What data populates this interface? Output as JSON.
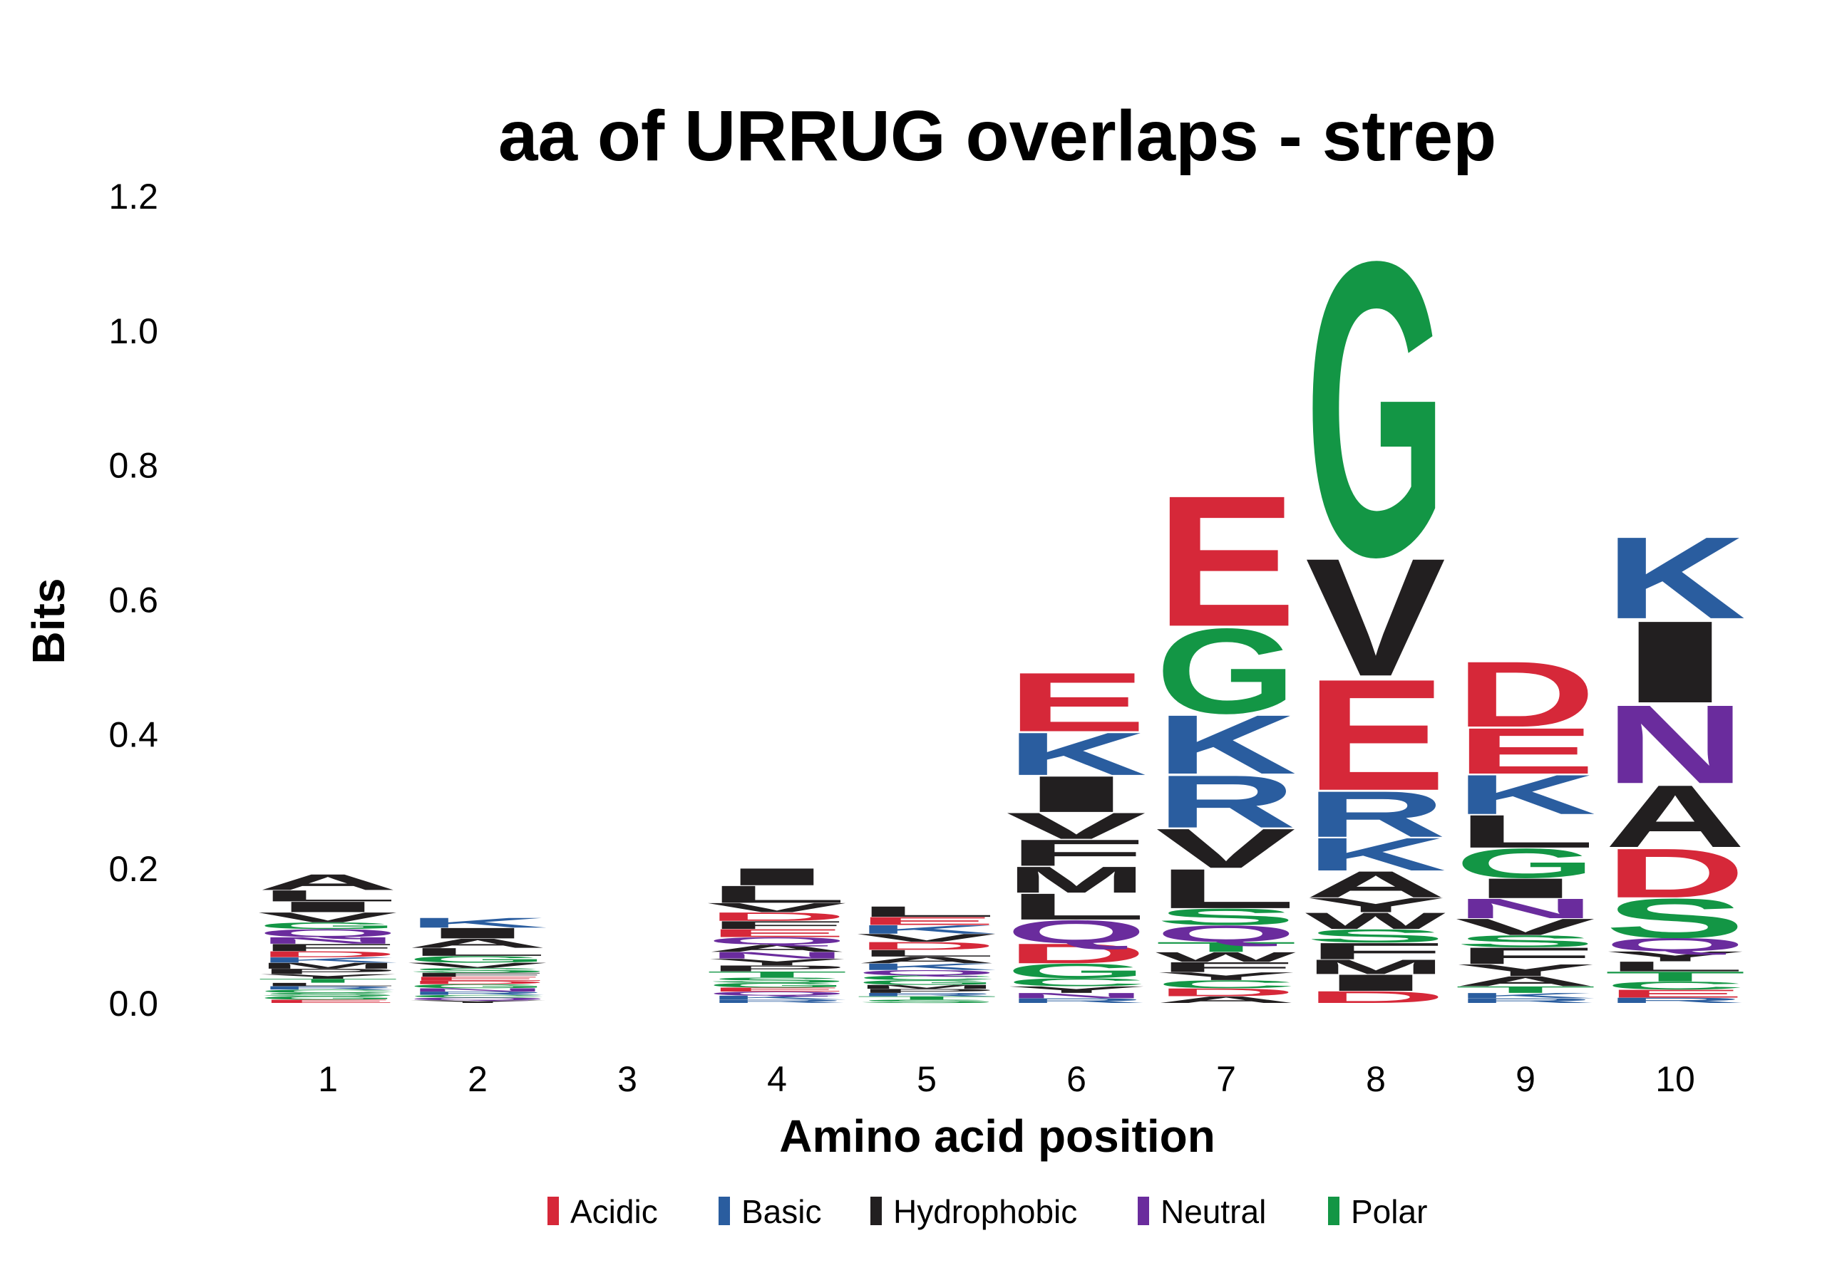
{
  "chart_data": {
    "type": "sequence-logo",
    "title": "aa of URRUG overlaps - strep",
    "xlabel": "Amino acid position",
    "ylabel": "Bits",
    "ylim": [
      0,
      1.2
    ],
    "yticks": [
      "0.0",
      "0.2",
      "0.4",
      "0.6",
      "0.8",
      "1.0",
      "1.2"
    ],
    "ytick_values": [
      0,
      0.2,
      0.4,
      0.6,
      0.8,
      1.0,
      1.2
    ],
    "positions": [
      "1",
      "2",
      "3",
      "4",
      "5",
      "6",
      "7",
      "8",
      "9",
      "10"
    ],
    "legend": [
      {
        "label": "Acidic",
        "color": "#d62839"
      },
      {
        "label": "Basic",
        "color": "#2a5d9f"
      },
      {
        "label": "Hydrophobic",
        "color": "#221f20"
      },
      {
        "label": "Neutral",
        "color": "#6a2c9d"
      },
      {
        "label": "Polar",
        "color": "#139645"
      }
    ],
    "colors": {
      "Acidic": "#d62839",
      "Basic": "#2a5d9f",
      "Hydrophobic": "#221f20",
      "Neutral": "#6a2c9d",
      "Polar": "#139645"
    },
    "residue_class": {
      "D": "Acidic",
      "E": "Acidic",
      "K": "Basic",
      "R": "Basic",
      "H": "Basic",
      "A": "Hydrophobic",
      "V": "Hydrophobic",
      "L": "Hydrophobic",
      "I": "Hydrophobic",
      "M": "Hydrophobic",
      "F": "Hydrophobic",
      "W": "Hydrophobic",
      "P": "Hydrophobic",
      "Y": "Hydrophobic",
      "Q": "Neutral",
      "N": "Neutral",
      "G": "Polar",
      "S": "Polar",
      "T": "Polar",
      "C": "Polar"
    },
    "stacks": [
      [
        [
          "E",
          0.005
        ],
        [
          "G",
          0.005
        ],
        [
          "S",
          0.005
        ],
        [
          "C",
          0.005
        ],
        [
          "R",
          0.005
        ],
        [
          "L",
          0.005
        ],
        [
          "T",
          0.006
        ],
        [
          "Y",
          0.007
        ],
        [
          "P",
          0.008
        ],
        [
          "M",
          0.009
        ],
        [
          "K",
          0.008
        ],
        [
          "D",
          0.009
        ],
        [
          "F",
          0.011
        ],
        [
          "N",
          0.01
        ],
        [
          "Q",
          0.012
        ],
        [
          "G",
          0.01
        ],
        [
          "V",
          0.015
        ],
        [
          "I",
          0.016
        ],
        [
          "L",
          0.017
        ],
        [
          "A",
          0.024
        ]
      ],
      [
        [
          "Y",
          0.004
        ],
        [
          "Q",
          0.004
        ],
        [
          "C",
          0.004
        ],
        [
          "R",
          0.005
        ],
        [
          "N",
          0.005
        ],
        [
          "G",
          0.006
        ],
        [
          "D",
          0.005
        ],
        [
          "E",
          0.006
        ],
        [
          "F",
          0.006
        ],
        [
          "S",
          0.007
        ],
        [
          "V",
          0.008
        ],
        [
          "G",
          0.01
        ],
        [
          "L",
          0.012
        ],
        [
          "A",
          0.014
        ],
        [
          "I",
          0.016
        ],
        [
          "K",
          0.015
        ]
      ],
      [],
      [
        [
          "R",
          0.005
        ],
        [
          "K",
          0.006
        ],
        [
          "Q",
          0.006
        ],
        [
          "E",
          0.006
        ],
        [
          "G",
          0.007
        ],
        [
          "S",
          0.008
        ],
        [
          "T",
          0.009
        ],
        [
          "P",
          0.009
        ],
        [
          "Y",
          0.01
        ],
        [
          "N",
          0.01
        ],
        [
          "A",
          0.011
        ],
        [
          "Q",
          0.011
        ],
        [
          "E",
          0.012
        ],
        [
          "F",
          0.012
        ],
        [
          "D",
          0.013
        ],
        [
          "V",
          0.014
        ],
        [
          "L",
          0.026
        ],
        [
          "I",
          0.026
        ]
      ],
      [
        [
          "S",
          0.005
        ],
        [
          "T",
          0.005
        ],
        [
          "R",
          0.005
        ],
        [
          "P",
          0.006
        ],
        [
          "M",
          0.006
        ],
        [
          "G",
          0.007
        ],
        [
          "C",
          0.007
        ],
        [
          "Q",
          0.008
        ],
        [
          "K",
          0.01
        ],
        [
          "A",
          0.01
        ],
        [
          "L",
          0.01
        ],
        [
          "D",
          0.012
        ],
        [
          "V",
          0.012
        ],
        [
          "K",
          0.013
        ],
        [
          "E",
          0.012
        ],
        [
          "L",
          0.016
        ]
      ],
      [
        [
          "R",
          0.007
        ],
        [
          "N",
          0.008
        ],
        [
          "Y",
          0.01
        ],
        [
          "C",
          0.012
        ],
        [
          "G",
          0.022
        ],
        [
          "D",
          0.03
        ],
        [
          "Q",
          0.035
        ],
        [
          "L",
          0.04
        ],
        [
          "M",
          0.04
        ],
        [
          "F",
          0.04
        ],
        [
          "V",
          0.04
        ],
        [
          "I",
          0.055
        ],
        [
          "K",
          0.065
        ],
        [
          "E",
          0.09
        ]
      ],
      [
        [
          "A",
          0.01
        ],
        [
          "D",
          0.012
        ],
        [
          "C",
          0.012
        ],
        [
          "Y",
          0.012
        ],
        [
          "F",
          0.015
        ],
        [
          "W",
          0.015
        ],
        [
          "T",
          0.015
        ],
        [
          "Q",
          0.025
        ],
        [
          "S",
          0.025
        ],
        [
          "L",
          0.06
        ],
        [
          "V",
          0.06
        ],
        [
          "R",
          0.08
        ],
        [
          "K",
          0.09
        ],
        [
          "G",
          0.13
        ],
        [
          "E",
          0.2
        ]
      ],
      [
        [
          "D",
          0.018
        ],
        [
          "I",
          0.025
        ],
        [
          "M",
          0.022
        ],
        [
          "F",
          0.025
        ],
        [
          "S",
          0.02
        ],
        [
          "W",
          0.025
        ],
        [
          "Y",
          0.022
        ],
        [
          "A",
          0.04
        ],
        [
          "K",
          0.05
        ],
        [
          "R",
          0.07
        ],
        [
          "E",
          0.17
        ],
        [
          "V",
          0.18
        ],
        [
          "G",
          0.45
        ]
      ],
      [
        [
          "R",
          0.007
        ],
        [
          "K",
          0.008
        ],
        [
          "T",
          0.01
        ],
        [
          "A",
          0.015
        ],
        [
          "Y",
          0.018
        ],
        [
          "F",
          0.025
        ],
        [
          "S",
          0.018
        ],
        [
          "V",
          0.025
        ],
        [
          "N",
          0.03
        ],
        [
          "I",
          0.03
        ],
        [
          "G",
          0.045
        ],
        [
          "L",
          0.05
        ],
        [
          "K",
          0.06
        ],
        [
          "E",
          0.07
        ],
        [
          "D",
          0.1
        ]
      ],
      [
        [
          "R",
          0.008
        ],
        [
          "E",
          0.012
        ],
        [
          "C",
          0.012
        ],
        [
          "T",
          0.015
        ],
        [
          "L",
          0.015
        ],
        [
          "Y",
          0.015
        ],
        [
          "Q",
          0.02
        ],
        [
          "S",
          0.06
        ],
        [
          "D",
          0.075
        ],
        [
          "A",
          0.095
        ],
        [
          "N",
          0.12
        ],
        [
          "I",
          0.125
        ],
        [
          "K",
          0.125
        ]
      ]
    ]
  }
}
